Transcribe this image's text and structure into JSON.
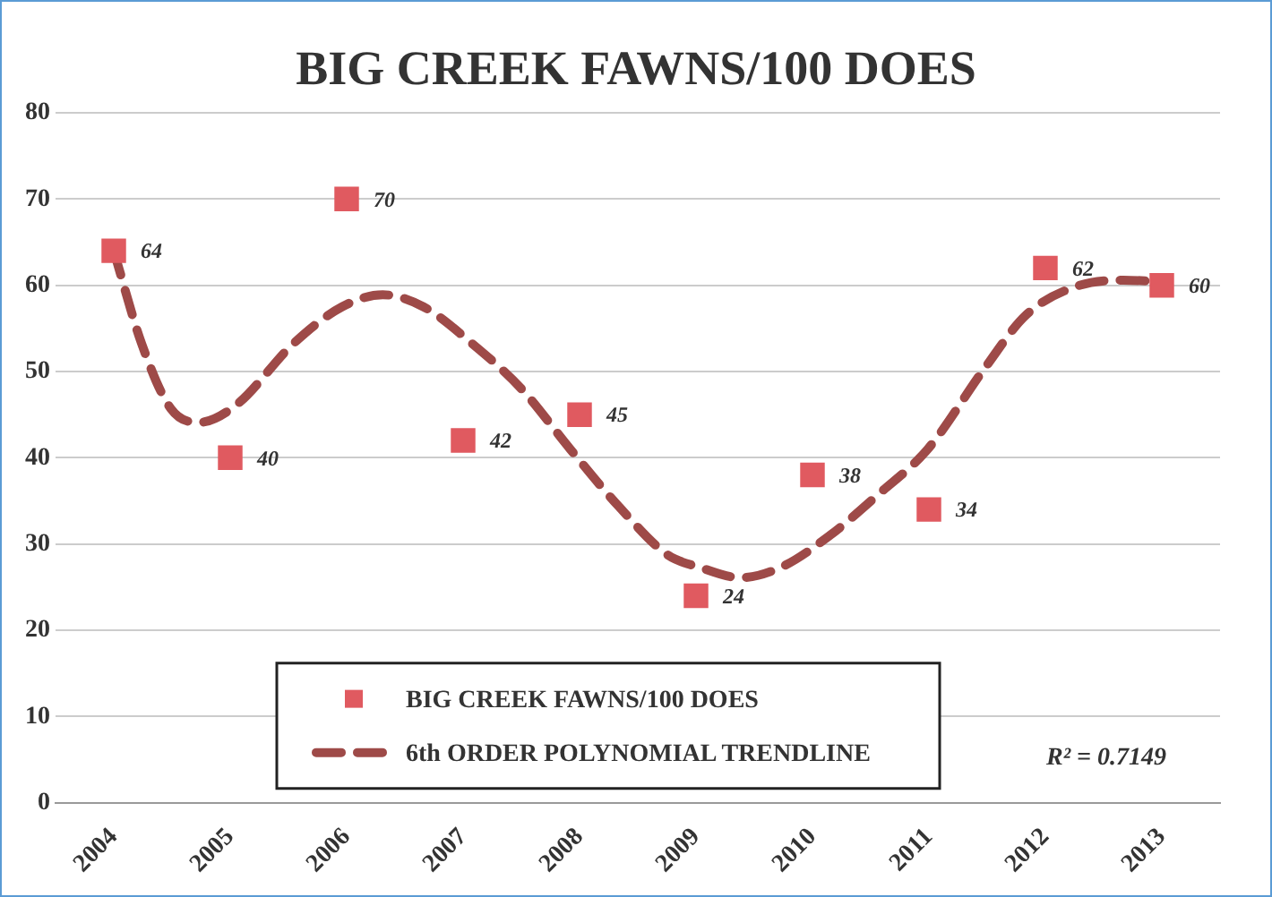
{
  "chart_data": {
    "type": "scatter",
    "title": "BIG CREEK FAWNS/100 DOES",
    "x": [
      2004,
      2005,
      2006,
      2007,
      2008,
      2009,
      2010,
      2011,
      2012,
      2013
    ],
    "series": [
      {
        "name": "BIG CREEK FAWNS/100 DOES",
        "type": "scatter",
        "color": "#e05a60",
        "marker": "square",
        "values": [
          64,
          40,
          70,
          42,
          45,
          24,
          38,
          34,
          62,
          60
        ],
        "value_labels": [
          "64",
          "40",
          "70",
          "42",
          "45",
          "24",
          "38",
          "34",
          "62",
          "60"
        ]
      },
      {
        "name": "6th ORDER POLYNOMIAL TRENDLINE",
        "type": "line",
        "color": "#9e4a48",
        "line_style": "dashed",
        "marker": "none",
        "x": [
          2004,
          2004.24,
          2004.49,
          2004.73,
          2005.05,
          2005.54,
          2005.96,
          2006.31,
          2006.66,
          2007.08,
          2007.5,
          2007.92,
          2008.34,
          2008.76,
          2009.03,
          2009.38,
          2009.73,
          2010.15,
          2010.57,
          2010.99,
          2011.48,
          2011.83,
          2012.25,
          2012.67,
          2013
        ],
        "values": [
          64,
          53.2,
          45.7,
          44.1,
          46.1,
          53.2,
          57.5,
          58.9,
          57.5,
          53.2,
          48,
          41,
          34.3,
          28.7,
          27.3,
          26.1,
          27.3,
          31,
          35.8,
          41,
          50.4,
          56.5,
          59.8,
          60.6,
          60.4
        ]
      }
    ],
    "xlim": [
      2003.5,
      2013.5
    ],
    "xticks": [
      2004,
      2005,
      2006,
      2007,
      2008,
      2009,
      2010,
      2011,
      2012,
      2013
    ],
    "ylim": [
      0,
      80
    ],
    "yticks": [
      0,
      10,
      20,
      30,
      40,
      50,
      60,
      70,
      80
    ],
    "grid": "y",
    "legend": "bottom",
    "annotations": [
      "R² = 0.7149"
    ]
  }
}
